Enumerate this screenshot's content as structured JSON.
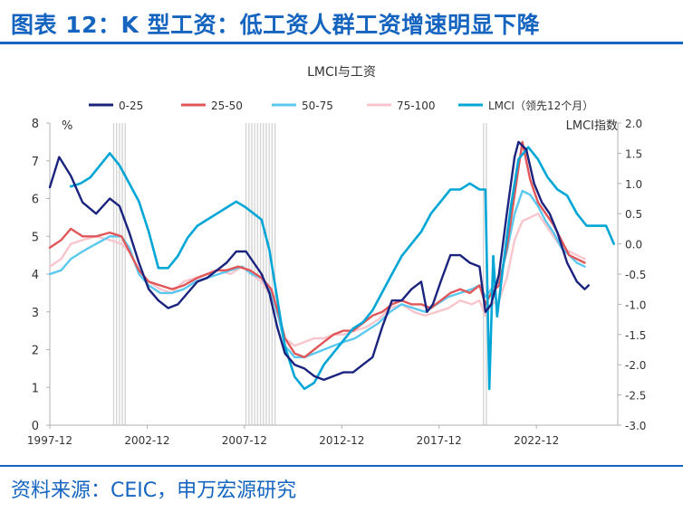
{
  "figure": {
    "title": "图表 12：K 型工资：低工资人群工资增速明显下降",
    "source": "资料来源：CEIC，申万宏源研究"
  },
  "chart_data": {
    "type": "line",
    "title": "LMCI与工资",
    "left_axis": {
      "unit": "%",
      "ylim": [
        0,
        8
      ],
      "ticks": [
        0,
        1,
        2,
        3,
        4,
        5,
        6,
        7,
        8
      ]
    },
    "right_axis": {
      "label": "LMCI指数",
      "ylim": [
        -3.0,
        2.0
      ],
      "ticks": [
        "-3.0",
        "-2.5",
        "-2.0",
        "-1.5",
        "-1.0",
        "-0.5",
        "0.0",
        "0.5",
        "1.0",
        "1.5",
        "2.0"
      ]
    },
    "x_axis": {
      "range": [
        1997.92,
        2027.1
      ],
      "ticks": [
        {
          "x": 1997.92,
          "label": "1997-12"
        },
        {
          "x": 2002.92,
          "label": "2002-12"
        },
        {
          "x": 2007.92,
          "label": "2007-12"
        },
        {
          "x": 2012.92,
          "label": "2012-12"
        },
        {
          "x": 2017.92,
          "label": "2017-12"
        },
        {
          "x": 2022.92,
          "label": "2022-12"
        }
      ]
    },
    "grid": false,
    "legend": "top",
    "recessions": [
      [
        2001.2,
        2001.9
      ],
      [
        2008.0,
        2009.5
      ],
      [
        2020.2,
        2020.35
      ]
    ],
    "series": [
      {
        "name": "0-25",
        "color": "#1A237E",
        "axis": "left",
        "points": [
          [
            1997.92,
            6.3
          ],
          [
            1998.4,
            7.1
          ],
          [
            1999.0,
            6.6
          ],
          [
            1999.6,
            5.9
          ],
          [
            2000.3,
            5.6
          ],
          [
            2001.0,
            6.0
          ],
          [
            2001.5,
            5.8
          ],
          [
            2002.0,
            5.1
          ],
          [
            2002.5,
            4.3
          ],
          [
            2003.0,
            3.6
          ],
          [
            2003.5,
            3.3
          ],
          [
            2004.0,
            3.1
          ],
          [
            2004.5,
            3.2
          ],
          [
            2005.0,
            3.5
          ],
          [
            2005.5,
            3.8
          ],
          [
            2006.0,
            3.9
          ],
          [
            2006.5,
            4.1
          ],
          [
            2007.0,
            4.3
          ],
          [
            2007.5,
            4.6
          ],
          [
            2008.0,
            4.6
          ],
          [
            2008.4,
            4.3
          ],
          [
            2008.8,
            4.0
          ],
          [
            2009.2,
            3.5
          ],
          [
            2009.6,
            2.6
          ],
          [
            2010.0,
            1.9
          ],
          [
            2010.5,
            1.6
          ],
          [
            2011.0,
            1.5
          ],
          [
            2011.5,
            1.3
          ],
          [
            2012.0,
            1.2
          ],
          [
            2012.5,
            1.3
          ],
          [
            2013.0,
            1.4
          ],
          [
            2013.5,
            1.4
          ],
          [
            2014.0,
            1.6
          ],
          [
            2014.5,
            1.8
          ],
          [
            2015.0,
            2.6
          ],
          [
            2015.5,
            3.3
          ],
          [
            2016.0,
            3.3
          ],
          [
            2016.5,
            3.6
          ],
          [
            2017.0,
            3.8
          ],
          [
            2017.3,
            3.0
          ],
          [
            2017.6,
            3.2
          ],
          [
            2018.0,
            3.8
          ],
          [
            2018.5,
            4.5
          ],
          [
            2019.0,
            4.5
          ],
          [
            2019.5,
            4.3
          ],
          [
            2020.0,
            4.2
          ],
          [
            2020.3,
            3.0
          ],
          [
            2020.6,
            3.2
          ],
          [
            2021.0,
            4.0
          ],
          [
            2021.4,
            5.6
          ],
          [
            2021.8,
            7.1
          ],
          [
            2022.0,
            7.5
          ],
          [
            2022.4,
            7.3
          ],
          [
            2022.8,
            6.4
          ],
          [
            2023.2,
            5.9
          ],
          [
            2023.6,
            5.6
          ],
          [
            2024.0,
            5.1
          ],
          [
            2024.5,
            4.3
          ],
          [
            2025.0,
            3.8
          ],
          [
            2025.4,
            3.6
          ],
          [
            2025.6,
            3.7
          ]
        ]
      },
      {
        "name": "25-50",
        "color": "#E15759",
        "axis": "left",
        "points": [
          [
            1997.92,
            4.7
          ],
          [
            1998.5,
            4.9
          ],
          [
            1999.0,
            5.2
          ],
          [
            1999.6,
            5.0
          ],
          [
            2000.3,
            5.0
          ],
          [
            2001.0,
            5.1
          ],
          [
            2001.6,
            5.0
          ],
          [
            2002.0,
            4.6
          ],
          [
            2002.5,
            4.1
          ],
          [
            2003.0,
            3.8
          ],
          [
            2003.6,
            3.7
          ],
          [
            2004.2,
            3.6
          ],
          [
            2004.8,
            3.7
          ],
          [
            2005.5,
            3.9
          ],
          [
            2006.0,
            4.0
          ],
          [
            2006.5,
            4.1
          ],
          [
            2007.0,
            4.1
          ],
          [
            2007.6,
            4.2
          ],
          [
            2008.2,
            4.1
          ],
          [
            2008.8,
            3.9
          ],
          [
            2009.3,
            3.6
          ],
          [
            2009.7,
            2.9
          ],
          [
            2010.0,
            2.3
          ],
          [
            2010.5,
            1.9
          ],
          [
            2011.0,
            1.8
          ],
          [
            2011.5,
            2.0
          ],
          [
            2012.0,
            2.2
          ],
          [
            2012.5,
            2.4
          ],
          [
            2013.0,
            2.5
          ],
          [
            2013.5,
            2.5
          ],
          [
            2014.0,
            2.7
          ],
          [
            2014.5,
            2.9
          ],
          [
            2015.0,
            3.0
          ],
          [
            2015.5,
            3.2
          ],
          [
            2016.0,
            3.3
          ],
          [
            2016.5,
            3.2
          ],
          [
            2017.0,
            3.2
          ],
          [
            2017.5,
            3.1
          ],
          [
            2018.0,
            3.3
          ],
          [
            2018.5,
            3.5
          ],
          [
            2019.0,
            3.6
          ],
          [
            2019.5,
            3.5
          ],
          [
            2020.0,
            3.7
          ],
          [
            2020.3,
            3.2
          ],
          [
            2020.6,
            3.5
          ],
          [
            2021.0,
            3.7
          ],
          [
            2021.4,
            4.7
          ],
          [
            2021.8,
            6.1
          ],
          [
            2022.2,
            7.5
          ],
          [
            2022.6,
            6.5
          ],
          [
            2023.0,
            5.9
          ],
          [
            2023.4,
            5.6
          ],
          [
            2023.8,
            5.3
          ],
          [
            2024.2,
            4.9
          ],
          [
            2024.6,
            4.5
          ],
          [
            2025.0,
            4.4
          ],
          [
            2025.4,
            4.3
          ]
        ]
      },
      {
        "name": "50-75",
        "color": "#5BC8F0",
        "axis": "left",
        "points": [
          [
            1997.92,
            4.0
          ],
          [
            1998.5,
            4.1
          ],
          [
            1999.0,
            4.4
          ],
          [
            1999.6,
            4.6
          ],
          [
            2000.3,
            4.8
          ],
          [
            2001.0,
            5.0
          ],
          [
            2001.6,
            5.0
          ],
          [
            2002.0,
            4.7
          ],
          [
            2002.5,
            4.0
          ],
          [
            2003.0,
            3.7
          ],
          [
            2003.6,
            3.5
          ],
          [
            2004.2,
            3.5
          ],
          [
            2004.8,
            3.6
          ],
          [
            2005.4,
            3.8
          ],
          [
            2006.0,
            3.9
          ],
          [
            2006.6,
            4.0
          ],
          [
            2007.2,
            4.1
          ],
          [
            2007.8,
            4.2
          ],
          [
            2008.3,
            4.0
          ],
          [
            2008.8,
            3.9
          ],
          [
            2009.3,
            3.5
          ],
          [
            2009.7,
            2.8
          ],
          [
            2010.0,
            2.1
          ],
          [
            2010.5,
            1.8
          ],
          [
            2011.0,
            1.8
          ],
          [
            2011.5,
            1.9
          ],
          [
            2012.0,
            2.0
          ],
          [
            2012.5,
            2.1
          ],
          [
            2013.0,
            2.2
          ],
          [
            2013.6,
            2.3
          ],
          [
            2014.2,
            2.5
          ],
          [
            2014.8,
            2.7
          ],
          [
            2015.4,
            3.0
          ],
          [
            2016.0,
            3.2
          ],
          [
            2016.6,
            3.1
          ],
          [
            2017.2,
            3.0
          ],
          [
            2017.8,
            3.2
          ],
          [
            2018.4,
            3.4
          ],
          [
            2019.0,
            3.5
          ],
          [
            2019.6,
            3.6
          ],
          [
            2020.0,
            3.7
          ],
          [
            2020.3,
            3.4
          ],
          [
            2020.6,
            3.6
          ],
          [
            2021.0,
            3.8
          ],
          [
            2021.4,
            4.6
          ],
          [
            2021.8,
            5.6
          ],
          [
            2022.2,
            6.2
          ],
          [
            2022.6,
            6.1
          ],
          [
            2023.0,
            5.8
          ],
          [
            2023.4,
            5.4
          ],
          [
            2023.8,
            5.1
          ],
          [
            2024.2,
            4.7
          ],
          [
            2024.6,
            4.5
          ],
          [
            2025.0,
            4.3
          ],
          [
            2025.4,
            4.2
          ]
        ]
      },
      {
        "name": "75-100",
        "color": "#F8C6CC",
        "axis": "left",
        "points": [
          [
            1997.92,
            4.2
          ],
          [
            1998.5,
            4.4
          ],
          [
            1999.0,
            4.8
          ],
          [
            1999.6,
            4.9
          ],
          [
            2000.3,
            5.0
          ],
          [
            2001.0,
            4.9
          ],
          [
            2001.6,
            4.8
          ],
          [
            2002.0,
            4.6
          ],
          [
            2002.5,
            4.1
          ],
          [
            2003.0,
            3.8
          ],
          [
            2003.6,
            3.6
          ],
          [
            2004.2,
            3.5
          ],
          [
            2004.8,
            3.8
          ],
          [
            2005.4,
            3.9
          ],
          [
            2006.0,
            4.0
          ],
          [
            2006.6,
            4.1
          ],
          [
            2007.2,
            4.0
          ],
          [
            2007.8,
            4.2
          ],
          [
            2008.3,
            4.0
          ],
          [
            2008.8,
            3.8
          ],
          [
            2009.3,
            3.4
          ],
          [
            2009.7,
            2.9
          ],
          [
            2010.0,
            2.3
          ],
          [
            2010.5,
            2.1
          ],
          [
            2011.0,
            2.2
          ],
          [
            2011.5,
            2.3
          ],
          [
            2012.0,
            2.3
          ],
          [
            2012.5,
            2.4
          ],
          [
            2013.0,
            2.4
          ],
          [
            2013.6,
            2.5
          ],
          [
            2014.2,
            2.6
          ],
          [
            2014.8,
            2.8
          ],
          [
            2015.4,
            3.1
          ],
          [
            2016.0,
            3.2
          ],
          [
            2016.6,
            3.0
          ],
          [
            2017.2,
            2.9
          ],
          [
            2017.8,
            3.0
          ],
          [
            2018.4,
            3.1
          ],
          [
            2019.0,
            3.3
          ],
          [
            2019.6,
            3.2
          ],
          [
            2020.0,
            3.3
          ],
          [
            2020.3,
            2.9
          ],
          [
            2020.6,
            3.2
          ],
          [
            2021.0,
            3.3
          ],
          [
            2021.4,
            3.9
          ],
          [
            2021.8,
            4.9
          ],
          [
            2022.2,
            5.4
          ],
          [
            2022.6,
            5.5
          ],
          [
            2023.0,
            5.6
          ],
          [
            2023.4,
            5.3
          ],
          [
            2023.8,
            5.0
          ],
          [
            2024.2,
            4.7
          ],
          [
            2024.6,
            4.6
          ],
          [
            2025.0,
            4.5
          ],
          [
            2025.4,
            4.4
          ]
        ]
      },
      {
        "name": "LMCI（领先12个月）",
        "color": "#00A6D6",
        "axis": "right",
        "points": [
          [
            1999.0,
            0.95
          ],
          [
            1999.5,
            1.0
          ],
          [
            2000.0,
            1.1
          ],
          [
            2000.5,
            1.3
          ],
          [
            2001.0,
            1.5
          ],
          [
            2001.5,
            1.3
          ],
          [
            2002.0,
            1.0
          ],
          [
            2002.5,
            0.7
          ],
          [
            2003.0,
            0.2
          ],
          [
            2003.5,
            -0.4
          ],
          [
            2004.0,
            -0.4
          ],
          [
            2004.5,
            -0.2
          ],
          [
            2005.0,
            0.1
          ],
          [
            2005.5,
            0.3
          ],
          [
            2006.0,
            0.4
          ],
          [
            2006.5,
            0.5
          ],
          [
            2007.0,
            0.6
          ],
          [
            2007.5,
            0.7
          ],
          [
            2008.0,
            0.6
          ],
          [
            2008.4,
            0.5
          ],
          [
            2008.8,
            0.4
          ],
          [
            2009.2,
            -0.1
          ],
          [
            2009.6,
            -0.9
          ],
          [
            2010.0,
            -1.7
          ],
          [
            2010.5,
            -2.2
          ],
          [
            2011.0,
            -2.4
          ],
          [
            2011.5,
            -2.3
          ],
          [
            2012.0,
            -2.0
          ],
          [
            2012.5,
            -1.8
          ],
          [
            2013.0,
            -1.6
          ],
          [
            2013.5,
            -1.4
          ],
          [
            2014.0,
            -1.3
          ],
          [
            2014.5,
            -1.1
          ],
          [
            2015.0,
            -0.8
          ],
          [
            2015.5,
            -0.5
          ],
          [
            2016.0,
            -0.2
          ],
          [
            2016.5,
            0.0
          ],
          [
            2017.0,
            0.2
          ],
          [
            2017.5,
            0.5
          ],
          [
            2018.0,
            0.7
          ],
          [
            2018.5,
            0.9
          ],
          [
            2019.0,
            0.9
          ],
          [
            2019.5,
            1.0
          ],
          [
            2020.0,
            0.9
          ],
          [
            2020.3,
            0.9
          ],
          [
            2020.5,
            -2.4
          ],
          [
            2020.7,
            -0.2
          ],
          [
            2020.9,
            -1.2
          ],
          [
            2021.2,
            -0.4
          ],
          [
            2021.6,
            0.6
          ],
          [
            2022.0,
            1.4
          ],
          [
            2022.5,
            1.6
          ],
          [
            2023.0,
            1.4
          ],
          [
            2023.5,
            1.1
          ],
          [
            2024.0,
            0.9
          ],
          [
            2024.5,
            0.8
          ],
          [
            2025.0,
            0.5
          ],
          [
            2025.5,
            0.3
          ],
          [
            2026.0,
            0.3
          ],
          [
            2026.5,
            0.3
          ],
          [
            2026.9,
            0.0
          ]
        ]
      }
    ]
  }
}
